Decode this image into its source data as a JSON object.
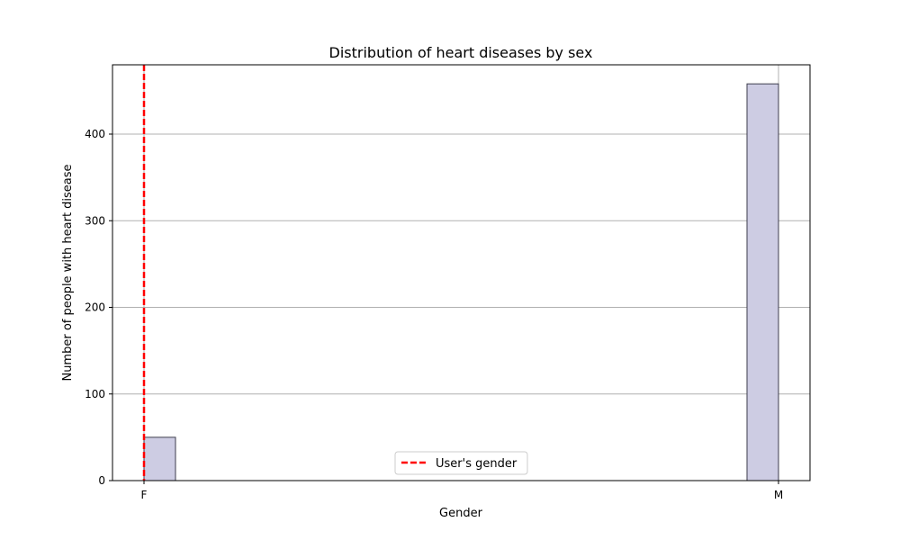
{
  "chart_data": {
    "type": "bar",
    "title": "Distribution of heart diseases by sex",
    "xlabel": "Gender",
    "ylabel": "Number of people with heart disease",
    "categories": [
      "F",
      "M"
    ],
    "values": [
      50,
      458
    ],
    "ylim": [
      0,
      480
    ],
    "yticks": [
      0,
      100,
      200,
      300,
      400
    ],
    "grid": true,
    "bar_color": "#cdcce3",
    "bar_edge_color": "#3d3d4d",
    "grid_color": "#b0b0b0",
    "reference_line": {
      "category": "F",
      "label": "User's gender",
      "color": "#ff0000",
      "style": "dashed"
    },
    "legend": {
      "placement": "lower-center",
      "entries": [
        "User's gender"
      ]
    }
  }
}
